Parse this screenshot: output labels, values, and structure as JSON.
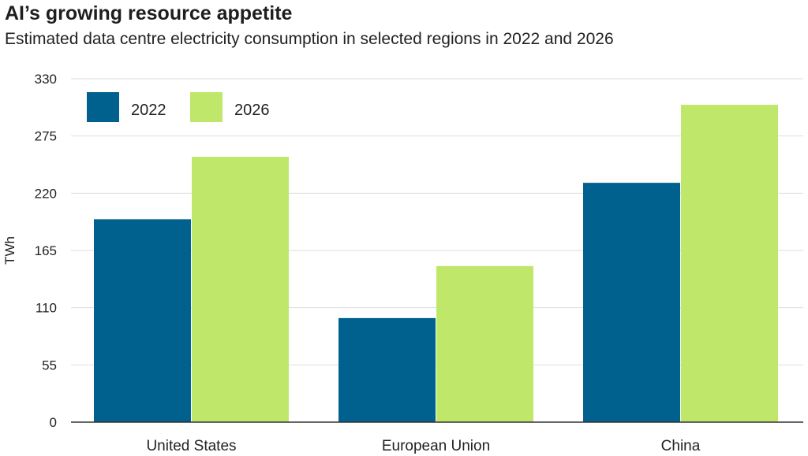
{
  "title": "AI’s growing resource appetite",
  "subtitle": "Estimated data centre electricity consumption in selected regions in 2022 and 2026",
  "chart_data": {
    "type": "bar",
    "categories": [
      "United States",
      "European Union",
      "China"
    ],
    "series": [
      {
        "name": "2022",
        "values": [
          195,
          100,
          230
        ],
        "color": "#00618f"
      },
      {
        "name": "2026",
        "values": [
          255,
          150,
          305
        ],
        "color": "#bfe86a"
      }
    ],
    "ylabel": "TWh",
    "xlabel": "",
    "ylim": [
      0,
      330
    ],
    "yticks": [
      "0",
      "55",
      "110",
      "165",
      "220",
      "275",
      "330"
    ],
    "grid": true,
    "legend_position": "top-left",
    "colors": {
      "gridline": "#dddddd",
      "axis": "#333333"
    }
  }
}
